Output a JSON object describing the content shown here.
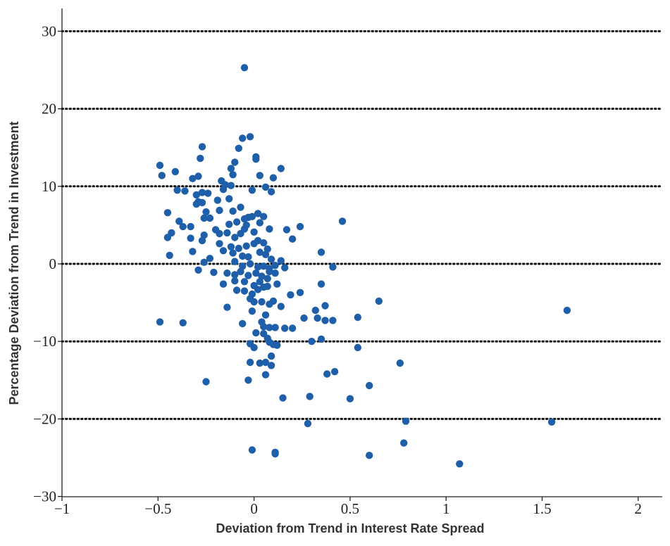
{
  "chart_data": {
    "type": "scatter",
    "title": "",
    "xlabel": "Deviation from Trend in Interest Rate Spread",
    "ylabel": "Percentage Deviation from Trend in Investment",
    "xlim": [
      -1,
      2.1
    ],
    "ylim": [
      -30,
      33
    ],
    "xticks": [
      -1,
      -0.5,
      0,
      0.5,
      1,
      1.5,
      2
    ],
    "xtick_labels": [
      "−1",
      "−0.5",
      "0",
      "0.5",
      "1",
      "1.5",
      "2"
    ],
    "yticks": [
      -30,
      -20,
      -10,
      0,
      10,
      20,
      30
    ],
    "ytick_labels": [
      "−30",
      "−20",
      "−10",
      "0",
      "10",
      "20",
      "30"
    ],
    "gridlines": "horizontal dotted at each y tick",
    "colors": {
      "points": "#1f5faa",
      "axes": "#222222",
      "grid": "#111111"
    },
    "series": [
      {
        "points": [
          [
            -0.05,
            25.3
          ],
          [
            -0.02,
            16.4
          ],
          [
            -0.06,
            16.2
          ],
          [
            -0.08,
            14.9
          ],
          [
            0.01,
            13.8
          ],
          [
            0.01,
            13.5
          ],
          [
            -0.1,
            13.1
          ],
          [
            -0.12,
            12.3
          ],
          [
            -0.11,
            11.5
          ],
          [
            0.03,
            11.4
          ],
          [
            0.1,
            11.1
          ],
          [
            0.14,
            12.3
          ],
          [
            -0.27,
            15.1
          ],
          [
            -0.28,
            13.6
          ],
          [
            -0.49,
            12.7
          ],
          [
            -0.41,
            11.9
          ],
          [
            -0.48,
            11.4
          ],
          [
            -0.32,
            11.0
          ],
          [
            -0.29,
            11.3
          ],
          [
            -0.17,
            10.7
          ],
          [
            -0.15,
            10.2
          ],
          [
            -0.12,
            10.1
          ],
          [
            -0.01,
            9.5
          ],
          [
            0.06,
            9.9
          ],
          [
            0.09,
            9.3
          ],
          [
            -0.4,
            9.5
          ],
          [
            -0.36,
            9.4
          ],
          [
            -0.3,
            8.9
          ],
          [
            -0.27,
            9.2
          ],
          [
            -0.24,
            9.1
          ],
          [
            -0.16,
            9.6
          ],
          [
            -0.19,
            8.2
          ],
          [
            -0.13,
            8.4
          ],
          [
            -0.29,
            8.0
          ],
          [
            -0.27,
            7.9
          ],
          [
            -0.3,
            7.7
          ],
          [
            -0.25,
            6.7
          ],
          [
            -0.18,
            6.9
          ],
          [
            -0.11,
            6.8
          ],
          [
            -0.07,
            7.3
          ],
          [
            -0.45,
            6.6
          ],
          [
            -0.39,
            5.5
          ],
          [
            -0.26,
            5.9
          ],
          [
            -0.23,
            5.9
          ],
          [
            -0.13,
            5.1
          ],
          [
            -0.09,
            5.4
          ],
          [
            -0.05,
            5.8
          ],
          [
            -0.03,
            6.0
          ],
          [
            -0.01,
            6.1
          ],
          [
            0.02,
            6.5
          ],
          [
            0.05,
            6.1
          ],
          [
            0.03,
            5.3
          ],
          [
            -0.04,
            5.0
          ],
          [
            0.08,
            4.5
          ],
          [
            0.24,
            4.8
          ],
          [
            0.46,
            5.5
          ],
          [
            -0.37,
            4.8
          ],
          [
            -0.33,
            4.8
          ],
          [
            -0.43,
            4.0
          ],
          [
            -0.45,
            3.4
          ],
          [
            -0.33,
            3.3
          ],
          [
            -0.26,
            3.7
          ],
          [
            -0.2,
            4.4
          ],
          [
            -0.18,
            3.9
          ],
          [
            -0.14,
            4.0
          ],
          [
            -0.1,
            3.4
          ],
          [
            -0.07,
            3.9
          ],
          [
            -0.05,
            4.5
          ],
          [
            0.0,
            4.1
          ],
          [
            0.17,
            4.4
          ],
          [
            0.2,
            3.2
          ],
          [
            -0.27,
            3.0
          ],
          [
            -0.18,
            2.6
          ],
          [
            -0.12,
            2.2
          ],
          [
            -0.08,
            2.0
          ],
          [
            -0.04,
            2.3
          ],
          [
            0.0,
            2.6
          ],
          [
            0.02,
            3.0
          ],
          [
            0.05,
            2.7
          ],
          [
            0.07,
            1.9
          ],
          [
            -0.32,
            1.6
          ],
          [
            -0.23,
            0.7
          ],
          [
            -0.16,
            1.7
          ],
          [
            -0.11,
            1.4
          ],
          [
            -0.06,
            1.0
          ],
          [
            -0.03,
            0.9
          ],
          [
            0.03,
            1.5
          ],
          [
            0.06,
            1.2
          ],
          [
            0.09,
            0.6
          ],
          [
            0.14,
            0.4
          ],
          [
            0.35,
            1.5
          ],
          [
            -0.44,
            1.1
          ],
          [
            -0.26,
            0.2
          ],
          [
            -0.1,
            0.3
          ],
          [
            -0.06,
            -0.3
          ],
          [
            -0.02,
            0.0
          ],
          [
            0.02,
            -0.4
          ],
          [
            0.05,
            -0.3
          ],
          [
            0.08,
            -0.6
          ],
          [
            0.11,
            -0.2
          ],
          [
            0.16,
            -0.5
          ],
          [
            -0.29,
            -0.8
          ],
          [
            -0.21,
            -1.1
          ],
          [
            -0.14,
            -1.2
          ],
          [
            -0.1,
            -1.4
          ],
          [
            -0.07,
            -1.0
          ],
          [
            -0.03,
            -1.5
          ],
          [
            0.01,
            -1.2
          ],
          [
            0.04,
            -1.6
          ],
          [
            0.08,
            -1.0
          ],
          [
            0.11,
            -1.2
          ],
          [
            0.41,
            -0.4
          ],
          [
            -0.16,
            -2.6
          ],
          [
            -0.1,
            -2.2
          ],
          [
            -0.05,
            -2.3
          ],
          [
            0.0,
            -2.8
          ],
          [
            0.03,
            -2.3
          ],
          [
            0.07,
            -1.9
          ],
          [
            0.12,
            -2.6
          ],
          [
            0.35,
            -2.6
          ],
          [
            -0.09,
            -3.4
          ],
          [
            -0.05,
            -3.5
          ],
          [
            -0.01,
            -3.9
          ],
          [
            0.02,
            -3.3
          ],
          [
            0.05,
            -3.0
          ],
          [
            0.07,
            -2.9
          ],
          [
            0.24,
            -3.7
          ],
          [
            0.19,
            -4.0
          ],
          [
            -0.02,
            -4.5
          ],
          [
            0.0,
            -4.9
          ],
          [
            0.04,
            -4.9
          ],
          [
            0.08,
            -5.2
          ],
          [
            0.1,
            -4.8
          ],
          [
            0.14,
            -5.5
          ],
          [
            -0.14,
            -5.6
          ],
          [
            0.32,
            -6.0
          ],
          [
            0.37,
            -5.4
          ],
          [
            0.65,
            -4.8
          ],
          [
            -0.01,
            -6.1
          ],
          [
            0.06,
            -6.6
          ],
          [
            0.26,
            -7.0
          ],
          [
            0.33,
            -7.0
          ],
          [
            0.37,
            -7.3
          ],
          [
            0.41,
            -7.3
          ],
          [
            0.54,
            -6.9
          ],
          [
            -0.49,
            -7.5
          ],
          [
            -0.37,
            -7.6
          ],
          [
            -0.06,
            -7.7
          ],
          [
            0.04,
            -7.5
          ],
          [
            0.05,
            -8.1
          ],
          [
            0.08,
            -8.2
          ],
          [
            0.11,
            -8.2
          ],
          [
            0.16,
            -8.3
          ],
          [
            0.2,
            -8.3
          ],
          [
            0.01,
            -8.9
          ],
          [
            0.05,
            -9.0
          ],
          [
            0.07,
            -9.6
          ],
          [
            0.08,
            -10.1
          ],
          [
            0.1,
            -10.4
          ],
          [
            0.12,
            -10.5
          ],
          [
            0.3,
            -10.0
          ],
          [
            0.35,
            -9.7
          ],
          [
            0.54,
            -10.8
          ],
          [
            1.63,
            -6.0
          ],
          [
            -0.02,
            -10.3
          ],
          [
            0.0,
            -10.8
          ],
          [
            0.09,
            -11.9
          ],
          [
            0.03,
            -12.8
          ],
          [
            -0.02,
            -12.7
          ],
          [
            0.06,
            -12.7
          ],
          [
            0.09,
            -13.1
          ],
          [
            0.06,
            -14.3
          ],
          [
            0.38,
            -14.2
          ],
          [
            0.42,
            -13.9
          ],
          [
            0.76,
            -12.8
          ],
          [
            -0.03,
            -15.0
          ],
          [
            -0.25,
            -15.2
          ],
          [
            0.6,
            -15.7
          ],
          [
            0.15,
            -17.3
          ],
          [
            0.29,
            -17.1
          ],
          [
            0.5,
            -17.4
          ],
          [
            0.79,
            -20.3
          ],
          [
            1.55,
            -20.4
          ],
          [
            0.28,
            -20.6
          ],
          [
            -0.01,
            -24.0
          ],
          [
            0.11,
            -24.3
          ],
          [
            0.11,
            -24.5
          ],
          [
            0.6,
            -24.7
          ],
          [
            0.78,
            -23.1
          ],
          [
            1.07,
            -25.8
          ]
        ]
      }
    ]
  }
}
